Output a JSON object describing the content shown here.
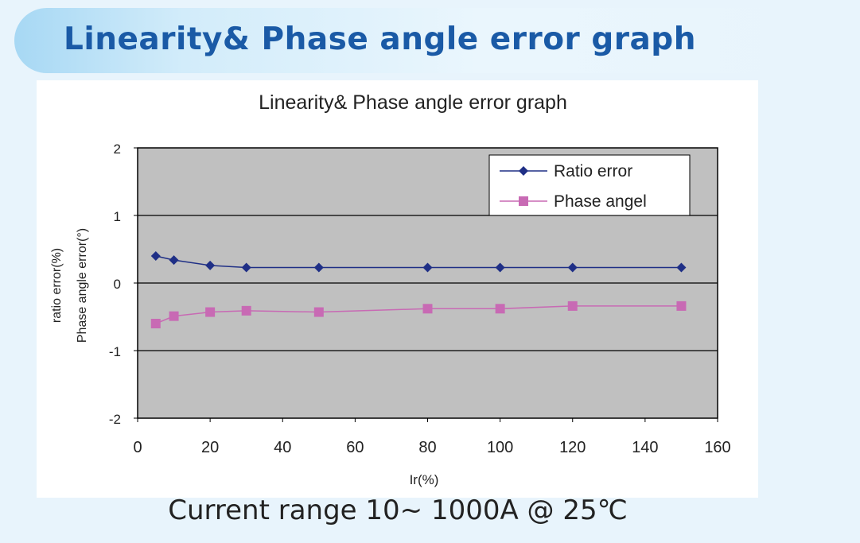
{
  "page": {
    "title": "Linearity& Phase angle error graph",
    "caption": "Current range 10~ 1000A @ 25℃"
  },
  "colors": {
    "title": "#1a5aa6",
    "plot_background": "#c0c0c0",
    "ratio_series": "#1f2f86",
    "phase_series": "#c86ab4"
  },
  "chart_data": {
    "type": "line",
    "title": "Linearity& Phase angle error graph",
    "xlabel": "Ir(%)",
    "ylabel": "ratio error(%)",
    "ylabel2": "Phase angle error(°)",
    "xlim": [
      0,
      160
    ],
    "ylim": [
      -2,
      2
    ],
    "xticks": [
      0,
      20,
      40,
      60,
      80,
      100,
      120,
      140,
      160
    ],
    "yticks": [
      -2,
      -1,
      0,
      1,
      2
    ],
    "grid": "horizontal",
    "legend_position": "top-right",
    "series": [
      {
        "name": "Ratio error",
        "marker": "diamond",
        "x": [
          5,
          10,
          20,
          30,
          50,
          80,
          100,
          120,
          150
        ],
        "values": [
          0.4,
          0.34,
          0.26,
          0.23,
          0.23,
          0.23,
          0.23,
          0.23,
          0.23
        ]
      },
      {
        "name": "Phase angel",
        "marker": "square",
        "x": [
          5,
          10,
          20,
          30,
          50,
          80,
          100,
          120,
          150
        ],
        "values": [
          -0.6,
          -0.49,
          -0.43,
          -0.41,
          -0.43,
          -0.38,
          -0.38,
          -0.34,
          -0.34
        ]
      }
    ]
  }
}
